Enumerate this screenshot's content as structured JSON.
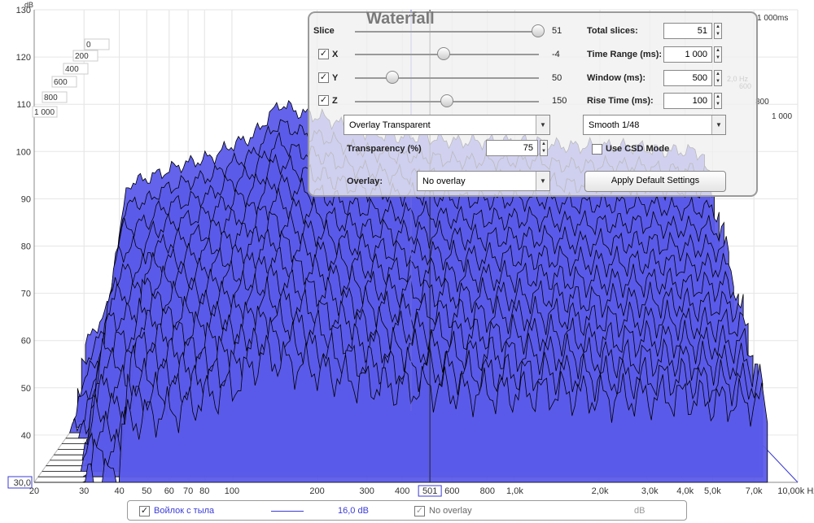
{
  "chart_data": {
    "type": "area",
    "title": "Waterfall",
    "x_unit": "Hz",
    "y_unit": "dB",
    "x_scale": "log",
    "xlim": [
      20,
      10000
    ],
    "ylim": [
      30,
      130
    ],
    "x_ticks": [
      "20",
      "30",
      "40",
      "50",
      "60",
      "70",
      "80",
      "100",
      "200",
      "300",
      "400",
      "501",
      "600",
      "800",
      "1,0k",
      "2,0k",
      "3,0k",
      "4,0k",
      "5,0k",
      "7,0k",
      "10,00k Hz"
    ],
    "x_tick_values": [
      20,
      30,
      40,
      50,
      60,
      70,
      80,
      100,
      200,
      300,
      400,
      501,
      600,
      800,
      1000,
      2000,
      3000,
      4000,
      5000,
      7000,
      10000
    ],
    "y_ticks": [
      30,
      40,
      50,
      60,
      70,
      80,
      90,
      100,
      110,
      120,
      130
    ],
    "y_tick_labels": [
      "30,0",
      "40",
      "50",
      "60",
      "70",
      "80",
      "90",
      "100",
      "110",
      "120",
      "130"
    ],
    "time_ticks": [
      "0",
      "200",
      "400",
      "600",
      "800",
      "1 000"
    ],
    "time_unit_label": "1 000ms",
    "right_depth_ticks": [
      "800",
      "1 000"
    ],
    "right_depth_ticks_mid": [
      "2,0 Hz",
      "600"
    ],
    "cursor_x_value": 501,
    "fill_color": "#5b5bea",
    "line_color": "#000000",
    "grid": true,
    "slices": 51,
    "envelope": {
      "x": [
        20,
        25,
        30,
        35,
        40,
        50,
        60,
        70,
        80,
        100,
        130,
        160,
        200,
        250,
        300,
        400,
        500,
        700,
        1000,
        1500,
        2000,
        3000,
        4000,
        5000,
        6000,
        7000,
        8000
      ],
      "y": [
        44,
        52,
        78,
        79,
        80,
        82,
        83,
        84,
        86,
        88,
        95,
        93,
        92,
        90,
        89,
        88,
        88,
        87,
        87,
        87,
        86,
        86,
        86,
        85,
        85,
        85,
        84
      ]
    }
  },
  "panel": {
    "title": "Waterfall",
    "slice_label": "Slice",
    "slice_value": "51",
    "x_label": "X",
    "x_value": "-4",
    "y_label": "Y",
    "y_value": "50",
    "z_label": "Z",
    "z_value": "150",
    "total_slices_label": "Total slices:",
    "total_slices": "51",
    "time_range_label": "Time Range (ms):",
    "time_range": "1 000",
    "window_label": "Window (ms):",
    "window": "500",
    "rise_time_label": "Rise Time (ms):",
    "rise_time": "100",
    "mode": "Overlay Transparent",
    "smoothing": "Smooth 1/48",
    "transparency_label": "Transparency (%)",
    "transparency": "75",
    "csd_label": "Use CSD Mode",
    "overlay_label": "Overlay:",
    "overlay_value": "No overlay",
    "apply_button": "Apply Default Settings"
  },
  "legend": {
    "measurement": "Войлок с тыла",
    "value": "16,0 dB",
    "overlay": "No overlay",
    "unit": "dB"
  }
}
